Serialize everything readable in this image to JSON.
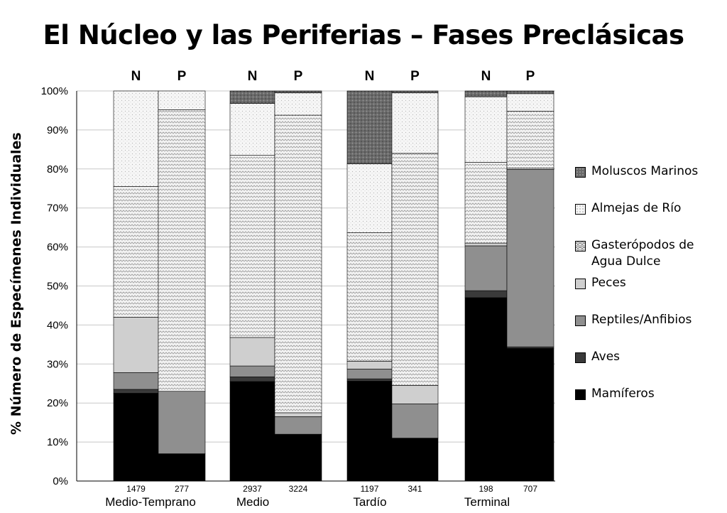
{
  "chart_data": {
    "type": "bar",
    "stacked": true,
    "percent": true,
    "title": "El Núcleo y las Periferias – Fases Preclásicas",
    "ylabel": "% Número de Especímenes Individuales",
    "ylim": [
      0,
      100
    ],
    "yticks": [
      "0%",
      "10%",
      "20%",
      "30%",
      "40%",
      "50%",
      "60%",
      "70%",
      "80%",
      "90%",
      "100%"
    ],
    "group_labels": [
      "Medio-Temprano",
      "Medio",
      "Tardío",
      "Terminal"
    ],
    "bars": [
      {
        "group": "Medio-Temprano",
        "label": "N",
        "n": "1479",
        "values": {
          "Mamíferos": 22.5,
          "Aves": 1,
          "Reptiles/Anfibios": 4.3,
          "Peces": 14.2,
          "Gasterópodos de Agua Dulce": 33.5,
          "Almejas de Río": 24.5,
          "Moluscos Marinos": 0
        }
      },
      {
        "group": "Medio-Temprano",
        "label": "P",
        "n": "277",
        "values": {
          "Mamíferos": 7,
          "Aves": 0,
          "Reptiles/Anfibios": 16,
          "Peces": 0,
          "Gasterópodos de Agua Dulce": 72.2,
          "Almejas de Río": 4.8,
          "Moluscos Marinos": 0
        }
      },
      {
        "group": "Medio",
        "label": "N",
        "n": "2937",
        "values": {
          "Mamíferos": 25.5,
          "Aves": 1.2,
          "Reptiles/Anfibios": 2.8,
          "Peces": 7.3,
          "Gasterópodos de Agua Dulce": 46.7,
          "Almejas de Río": 13.3,
          "Moluscos Marinos": 3.2
        }
      },
      {
        "group": "Medio",
        "label": "P",
        "n": "3224",
        "values": {
          "Mamíferos": 12,
          "Aves": 0,
          "Reptiles/Anfibios": 4.5,
          "Peces": 1,
          "Gasterópodos de Agua Dulce": 76.3,
          "Almejas de Río": 5.7,
          "Moluscos Marinos": 0.5
        }
      },
      {
        "group": "Tardío",
        "label": "N",
        "n": "1197",
        "values": {
          "Mamíferos": 25.6,
          "Aves": 0.6,
          "Reptiles/Anfibios": 2.5,
          "Peces": 2,
          "Gasterópodos de Agua Dulce": 33,
          "Almejas de Río": 17.6,
          "Moluscos Marinos": 18.7
        }
      },
      {
        "group": "Tardío",
        "label": "P",
        "n": "341",
        "values": {
          "Mamíferos": 11,
          "Aves": 0,
          "Reptiles/Anfibios": 8.8,
          "Peces": 4.7,
          "Gasterópodos de Agua Dulce": 59.5,
          "Almejas de Río": 15.5,
          "Moluscos Marinos": 0.5
        }
      },
      {
        "group": "Terminal",
        "label": "N",
        "n": "198",
        "values": {
          "Mamíferos": 47,
          "Aves": 1.8,
          "Reptiles/Anfibios": 11.5,
          "Peces": 0.7,
          "Gasterópodos de Agua Dulce": 20.7,
          "Almejas de Río": 16.8,
          "Moluscos Marinos": 1.5
        }
      },
      {
        "group": "Terminal",
        "label": "P",
        "n": "707",
        "values": {
          "Mamíferos": 34,
          "Aves": 0.4,
          "Reptiles/Anfibios": 45.5,
          "Peces": 0.3,
          "Gasterópodos de Agua Dulce": 14.6,
          "Almejas de Río": 4.5,
          "Moluscos Marinos": 0.7
        }
      }
    ],
    "series_order": [
      "Mamíferos",
      "Aves",
      "Reptiles/Anfibios",
      "Peces",
      "Gasterópodos de Agua Dulce",
      "Almejas de Río",
      "Moluscos Marinos"
    ],
    "legend_placement": "right",
    "legend": [
      {
        "name": "Moluscos Marinos",
        "color": "#6a6a6a",
        "pattern": "dots-dark"
      },
      {
        "name": "Almejas de Río",
        "color": "#f4f4f4",
        "pattern": "dots-light"
      },
      {
        "name": "Gasterópodos de Agua Dulce",
        "color": "#eeeeee",
        "pattern": "zigzag"
      },
      {
        "name": "Peces",
        "color": "#cfcfcf",
        "pattern": "solid"
      },
      {
        "name": "Reptiles/Anfibios",
        "color": "#8f8f8f",
        "pattern": "solid"
      },
      {
        "name": "Aves",
        "color": "#3a3a3a",
        "pattern": "solid"
      },
      {
        "name": "Mamíferos",
        "color": "#000000",
        "pattern": "solid"
      }
    ],
    "grid": "horizontal"
  }
}
